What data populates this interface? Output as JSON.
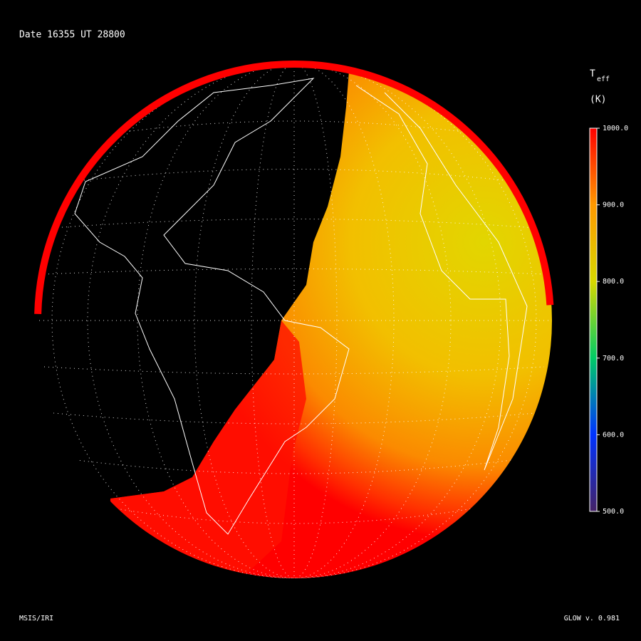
{
  "header": {
    "title": "Date 16355  UT 28800"
  },
  "colorbar": {
    "symbol": "T",
    "subscript": "eff",
    "unit": "(K)",
    "range": [
      500,
      1000
    ],
    "ticks": [
      {
        "value": 1000,
        "label": "1000.0"
      },
      {
        "value": 900,
        "label": "900.0"
      },
      {
        "value": 800,
        "label": "800.0"
      },
      {
        "value": 700,
        "label": "700.0"
      },
      {
        "value": 600,
        "label": "600.0"
      },
      {
        "value": 500,
        "label": "500.0"
      }
    ]
  },
  "footer": {
    "left": "MSIS/IRI",
    "right": "GLOW v. 0.981"
  }
}
